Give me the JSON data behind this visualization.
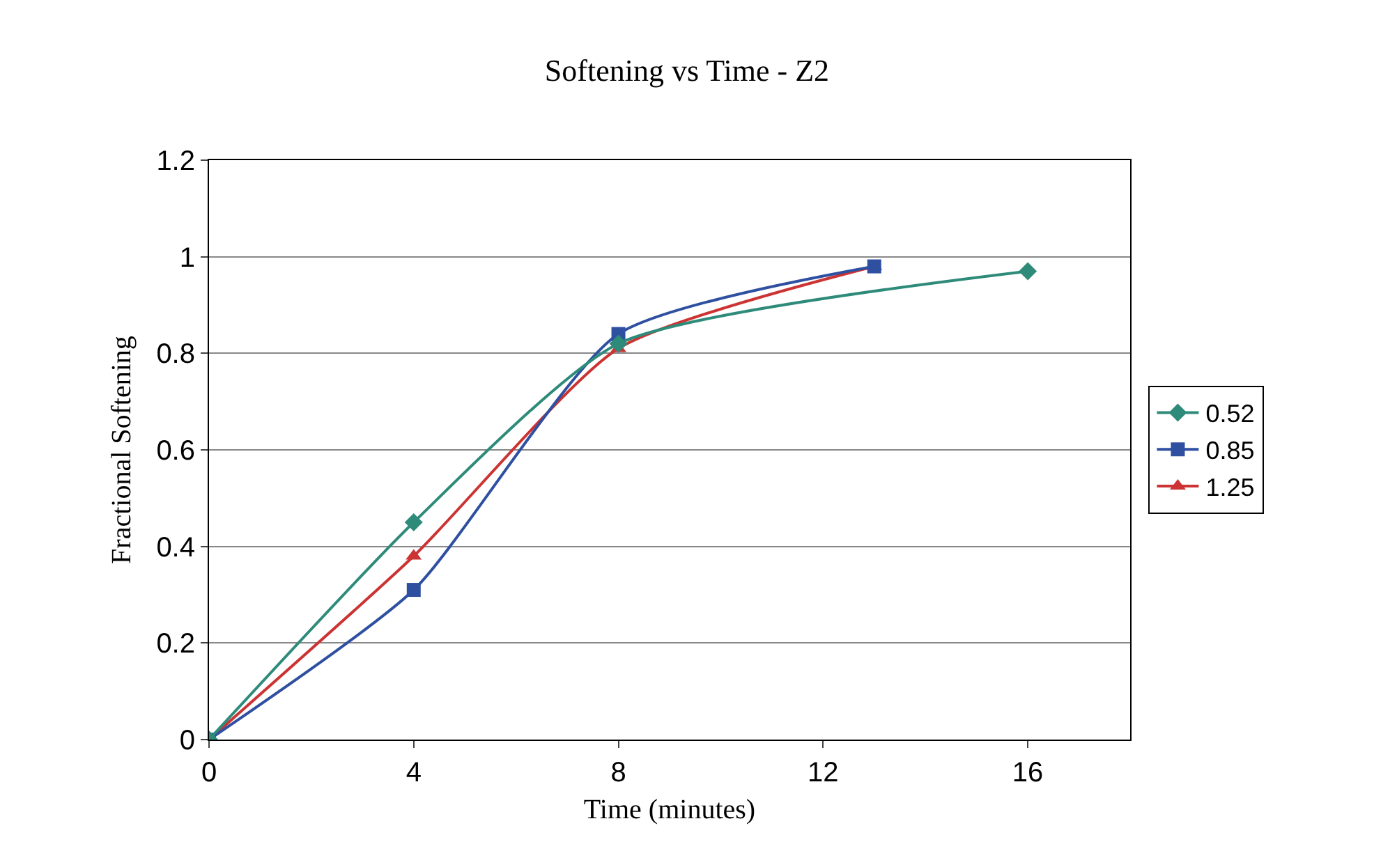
{
  "chart_data": {
    "type": "line",
    "title": "Softening vs Time - Z2",
    "xlabel": "Time (minutes)",
    "ylabel": "Fractional Softening",
    "xlim": [
      0,
      18
    ],
    "xticks": [
      0,
      4,
      8,
      12,
      16
    ],
    "ylim": [
      0,
      1.2
    ],
    "yticks": [
      0,
      0.2,
      0.4,
      0.6,
      0.8,
      1,
      1.2
    ],
    "grid": "y",
    "legend": "right",
    "series": [
      {
        "name": "0.52",
        "color": "#2e8b7a",
        "marker": "diamond",
        "x": [
          0,
          4,
          8,
          16
        ],
        "values": [
          0,
          0.45,
          0.82,
          0.97
        ]
      },
      {
        "name": "0.85",
        "color": "#2f4fa0",
        "marker": "square",
        "x": [
          0,
          4,
          8,
          13
        ],
        "values": [
          0,
          0.31,
          0.84,
          0.98
        ]
      },
      {
        "name": "1.25",
        "color": "#cc3333",
        "marker": "triangle",
        "x": [
          0,
          4,
          8,
          13
        ],
        "values": [
          0,
          0.38,
          0.81,
          0.98
        ]
      }
    ]
  }
}
